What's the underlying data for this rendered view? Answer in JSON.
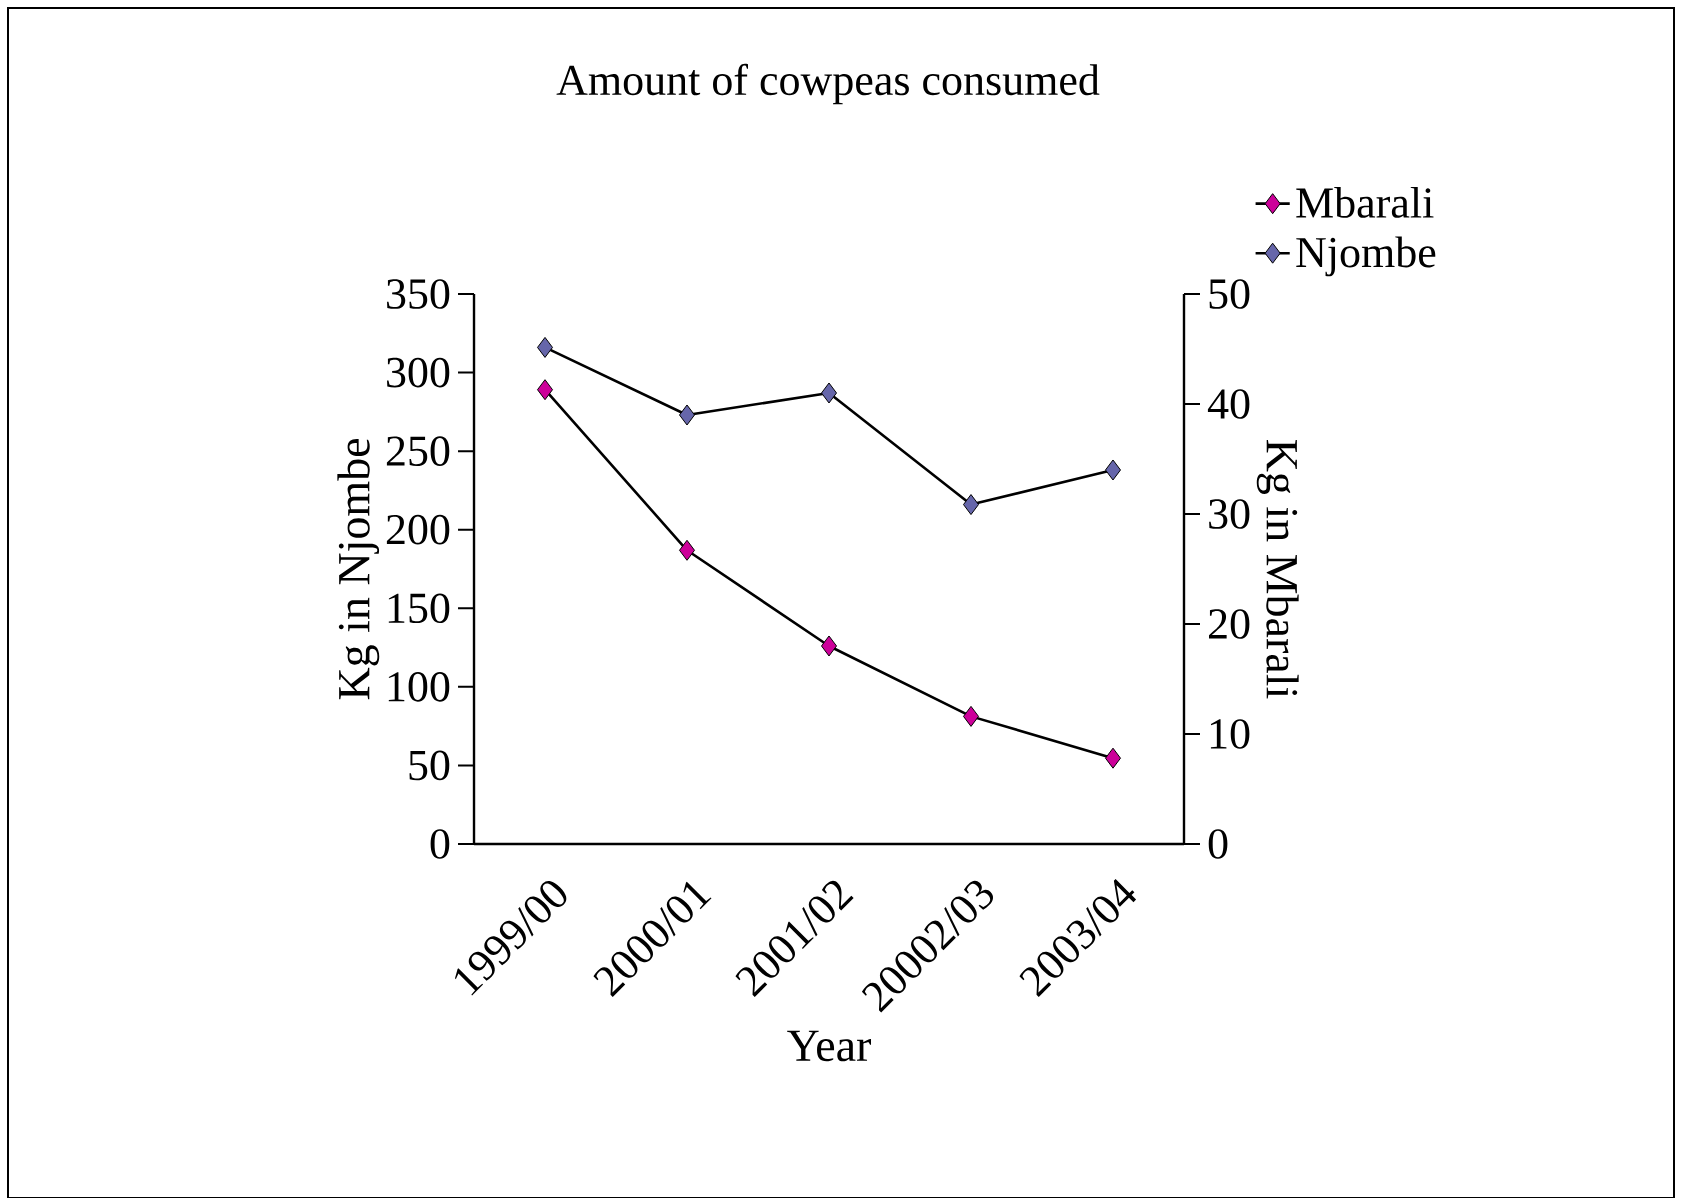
{
  "chart_data": {
    "type": "line",
    "title": "Amount of cowpeas consumed",
    "xlabel": "Year",
    "ylabel": "Kg in Njombe",
    "y2label": "Kg in Mbarali",
    "categories": [
      "1999/00",
      "2000/01",
      "2001/02",
      "20002/03",
      "2003/04"
    ],
    "series": [
      {
        "name": "Mbarali",
        "color": "#cc0099",
        "axis": "y2",
        "values": [
          41.3,
          26.7,
          18.0,
          11.6,
          7.8
        ]
      },
      {
        "name": "Njombe",
        "color": "#6666aa",
        "values": [
          316,
          273,
          287,
          216,
          238
        ]
      }
    ],
    "ylim": [
      0,
      350
    ],
    "yticks": [
      0,
      50,
      100,
      150,
      200,
      250,
      300,
      350
    ],
    "y2lim": [
      0,
      50
    ],
    "y2ticks": [
      0,
      10,
      20,
      30,
      40,
      50
    ],
    "marker": "diamond",
    "legend": "top right"
  }
}
